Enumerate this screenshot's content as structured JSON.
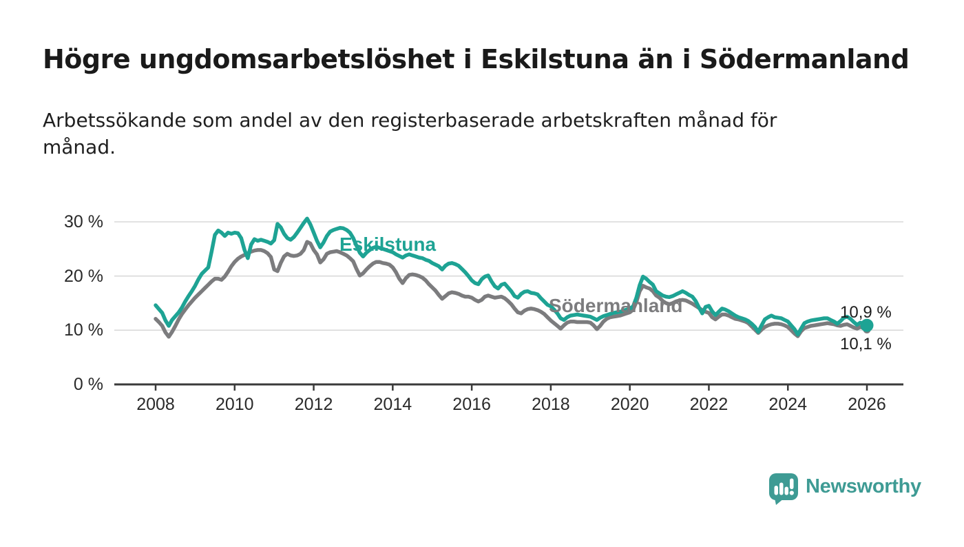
{
  "page": {
    "background": "#ffffff"
  },
  "header": {
    "title": "Högre ungdomsarbetslöshet i Eskilstuna än i Södermanland",
    "subtitle_lines": [
      "Arbetssökande som andel av den registerbaserade arbetskraften månad för",
      "månad."
    ]
  },
  "footer": {
    "logo_text": "Newsworthy",
    "logo_icon": "newsworthy-speech-bubble-bar-chart-icon",
    "logo_color": "#3e9b94"
  },
  "chart_data": {
    "type": "line",
    "title": "Högre ungdomsarbetslöshet i Eskilstuna än i Södermanland",
    "unit": "percent",
    "x_axis": {
      "start_year": 2008,
      "step_months": 1,
      "tick_years": [
        2008,
        2010,
        2012,
        2014,
        2016,
        2018,
        2020,
        2022,
        2024,
        2026
      ],
      "tick_labels": [
        "2008",
        "2010",
        "2012",
        "2014",
        "2016",
        "2018",
        "2020",
        "2022",
        "2024",
        "2026"
      ],
      "range_years": [
        2006.95,
        2026.9
      ]
    },
    "y_axis": {
      "tick_values": [
        0,
        10,
        20,
        30
      ],
      "tick_labels": [
        "0 %",
        "10 %",
        "20 %",
        "30 %"
      ],
      "range": [
        0,
        32
      ],
      "gridlines": true
    },
    "style": {
      "axis_color": "#3a3a3a",
      "grid_color": "#d9d9d9",
      "tick_label_color": "#2a2a2a",
      "end_label_color": "#1d1d1d"
    },
    "series": [
      {
        "name": "Eskilstuna",
        "color": "#1ea394",
        "end_label": "10,9 %",
        "end_value": 10.9,
        "values": [
          14.6,
          13.9,
          13.2,
          11.8,
          10.8,
          11.9,
          12.6,
          13.3,
          14.2,
          15.3,
          16.3,
          17.2,
          18.2,
          19.4,
          20.4,
          21.0,
          21.6,
          24.5,
          27.6,
          28.4,
          28.0,
          27.4,
          28.0,
          27.8,
          28.0,
          27.9,
          27.0,
          24.8,
          23.3,
          25.8,
          26.8,
          26.5,
          26.7,
          26.5,
          26.3,
          26.0,
          26.6,
          29.6,
          29.0,
          27.8,
          27.0,
          26.7,
          27.2,
          28.0,
          28.9,
          29.8,
          30.6,
          29.5,
          28.0,
          26.5,
          25.3,
          26.2,
          27.4,
          28.2,
          28.5,
          28.7,
          28.9,
          28.8,
          28.5,
          28.0,
          27.0,
          25.6,
          24.3,
          23.6,
          24.3,
          24.8,
          25.2,
          25.4,
          25.2,
          25.0,
          24.8,
          24.6,
          24.4,
          24.0,
          23.7,
          23.4,
          23.8,
          24.0,
          23.8,
          23.6,
          23.4,
          23.3,
          23.0,
          22.8,
          22.4,
          22.1,
          21.8,
          21.2,
          21.9,
          22.3,
          22.4,
          22.2,
          21.9,
          21.3,
          20.7,
          20.0,
          19.2,
          18.7,
          18.5,
          19.4,
          19.9,
          20.1,
          19.0,
          18.1,
          17.7,
          18.4,
          18.6,
          17.9,
          17.2,
          16.3,
          16.0,
          16.7,
          17.1,
          17.2,
          16.9,
          16.8,
          16.6,
          15.9,
          15.3,
          14.7,
          14.4,
          13.8,
          13.1,
          12.2,
          11.9,
          12.4,
          12.7,
          12.8,
          12.9,
          12.8,
          12.7,
          12.6,
          12.5,
          12.2,
          11.9,
          12.3,
          12.6,
          12.8,
          13.0,
          13.2,
          13.3,
          13.4,
          13.6,
          13.8,
          14.0,
          14.4,
          16.0,
          18.3,
          19.9,
          19.5,
          18.9,
          18.4,
          17.2,
          16.8,
          16.4,
          16.2,
          16.1,
          16.3,
          16.6,
          16.9,
          17.2,
          16.9,
          16.5,
          16.2,
          15.4,
          14.2,
          13.1,
          14.3,
          14.5,
          13.5,
          12.8,
          13.4,
          14.0,
          13.8,
          13.5,
          13.1,
          12.7,
          12.4,
          12.2,
          12.0,
          11.7,
          11.2,
          10.6,
          9.7,
          10.9,
          12.0,
          12.4,
          12.7,
          12.4,
          12.3,
          12.2,
          11.9,
          11.6,
          10.9,
          10.2,
          9.2,
          10.3,
          11.3,
          11.6,
          11.8,
          11.9,
          12.0,
          12.1,
          12.2,
          12.2,
          11.9,
          11.6,
          11.2,
          11.7,
          12.3,
          12.5,
          12.1,
          11.5,
          11.0,
          11.4,
          11.2,
          10.9
        ]
      },
      {
        "name": "Södermanland",
        "color": "#7c7c7e",
        "end_label": "10,1 %",
        "end_value": 10.1,
        "values": [
          12.1,
          11.5,
          10.8,
          9.6,
          8.8,
          9.7,
          10.8,
          12.0,
          13.0,
          13.8,
          14.6,
          15.3,
          16.0,
          16.6,
          17.2,
          17.8,
          18.4,
          19.0,
          19.5,
          19.5,
          19.3,
          19.9,
          20.8,
          21.8,
          22.6,
          23.2,
          23.6,
          23.9,
          24.2,
          24.5,
          24.7,
          24.8,
          24.8,
          24.6,
          24.2,
          23.5,
          21.2,
          20.9,
          22.4,
          23.6,
          24.1,
          23.8,
          23.7,
          23.8,
          24.1,
          24.8,
          26.3,
          26.0,
          24.8,
          24.0,
          22.5,
          23.1,
          24.1,
          24.4,
          24.5,
          24.6,
          24.4,
          24.1,
          23.8,
          23.3,
          22.7,
          21.3,
          20.1,
          20.5,
          21.2,
          21.8,
          22.3,
          22.6,
          22.6,
          22.4,
          22.3,
          22.1,
          21.6,
          20.7,
          19.5,
          18.7,
          19.6,
          20.2,
          20.3,
          20.2,
          20.0,
          19.7,
          19.2,
          18.5,
          17.9,
          17.3,
          16.5,
          15.8,
          16.3,
          16.8,
          17.0,
          16.9,
          16.7,
          16.4,
          16.2,
          16.2,
          16.0,
          15.6,
          15.3,
          15.6,
          16.2,
          16.4,
          16.2,
          16.0,
          16.1,
          16.2,
          15.9,
          15.4,
          14.8,
          14.0,
          13.3,
          13.1,
          13.6,
          13.9,
          14.0,
          13.9,
          13.7,
          13.4,
          13.0,
          12.4,
          11.8,
          11.3,
          10.8,
          10.3,
          10.9,
          11.4,
          11.6,
          11.6,
          11.5,
          11.5,
          11.5,
          11.5,
          11.4,
          10.9,
          10.2,
          10.8,
          11.6,
          12.1,
          12.4,
          12.5,
          12.6,
          12.7,
          12.9,
          13.1,
          13.3,
          13.8,
          15.2,
          17.2,
          18.2,
          17.9,
          17.7,
          17.2,
          16.4,
          16.0,
          15.4,
          15.0,
          14.8,
          15.0,
          15.3,
          15.5,
          15.6,
          15.5,
          15.2,
          14.9,
          14.5,
          14.1,
          13.7,
          13.4,
          13.2,
          12.4,
          12.0,
          12.5,
          12.9,
          12.9,
          12.7,
          12.4,
          12.1,
          12.0,
          11.8,
          11.6,
          11.3,
          10.7,
          10.1,
          9.5,
          10.1,
          10.6,
          10.9,
          11.1,
          11.2,
          11.2,
          11.1,
          10.9,
          10.6,
          10.0,
          9.4,
          8.9,
          9.8,
          10.4,
          10.6,
          10.8,
          10.9,
          11.0,
          11.1,
          11.2,
          11.3,
          11.2,
          11.1,
          10.9,
          10.8,
          11.0,
          11.1,
          10.8,
          10.5,
          10.3,
          10.6,
          10.4,
          10.1
        ]
      }
    ]
  }
}
